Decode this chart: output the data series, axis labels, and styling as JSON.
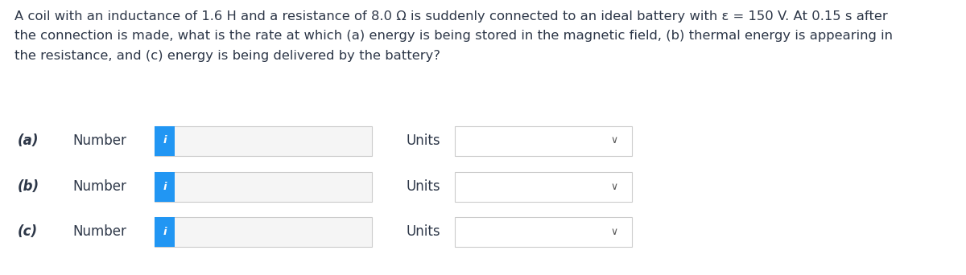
{
  "background_color": "#ffffff",
  "text_color": "#2d3748",
  "bold_text_color": "#1a202c",
  "question_text_line1": "A coil with an inductance of 1.6 H and a resistance of 8.0 Ω is suddenly connected to an ideal battery with ε = 150 V. At 0.15 s after",
  "question_text_line2": "the connection is made, what is the rate at which (a) energy is being stored in the magnetic field, (b) thermal energy is appearing in",
  "question_text_line3": "the resistance, and (c) energy is being delivered by the battery?",
  "rows": [
    {
      "label": "(a)",
      "sub_label": "Number",
      "units_label": "Units"
    },
    {
      "label": "(b)",
      "sub_label": "Number",
      "units_label": "Units"
    },
    {
      "label": "(c)",
      "sub_label": "Number",
      "units_label": "Units"
    }
  ],
  "input_box_facecolor": "#f5f5f5",
  "input_box_edgecolor": "#cccccc",
  "blue_tab_color": "#2196F3",
  "units_box_facecolor": "#ffffff",
  "units_box_edgecolor": "#cccccc",
  "i_text_color": "#ffffff",
  "chevron_color": "#555555",
  "font_size_question": 11.8,
  "font_size_row": 12.0,
  "font_size_i": 9.5
}
